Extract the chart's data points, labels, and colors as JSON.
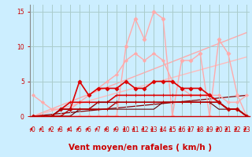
{
  "xlabel": "Vent moyen/en rafales ( km/h )",
  "bg_color": "#cceeff",
  "grid_color": "#aacccc",
  "x_ticks": [
    0,
    1,
    2,
    3,
    4,
    5,
    6,
    7,
    8,
    9,
    10,
    11,
    12,
    13,
    14,
    15,
    16,
    17,
    18,
    19,
    20,
    21,
    22,
    23
  ],
  "y_ticks": [
    0,
    5,
    10,
    15
  ],
  "ylim": [
    0,
    16
  ],
  "xlim": [
    0,
    23
  ],
  "lines": [
    {
      "x": [
        0,
        1,
        2,
        3,
        4,
        5,
        6,
        7,
        8,
        9,
        10,
        11,
        12,
        13,
        14,
        15,
        16,
        17,
        18,
        19,
        20,
        21,
        22,
        23
      ],
      "y": [
        0,
        0,
        0,
        0,
        0,
        0,
        0,
        0,
        0,
        0,
        10,
        14,
        11,
        15,
        14,
        0,
        8,
        8,
        9,
        0,
        11,
        9,
        3,
        0
      ],
      "color": "#ffaaaa",
      "lw": 1.0,
      "marker": "D",
      "ms": 2.5,
      "zorder": 2
    },
    {
      "x": [
        0,
        23
      ],
      "y": [
        0,
        12
      ],
      "color": "#ffaaaa",
      "lw": 1.0,
      "marker": null,
      "ms": 0,
      "zorder": 1
    },
    {
      "x": [
        0,
        23
      ],
      "y": [
        0,
        8.5
      ],
      "color": "#ffbbbb",
      "lw": 1.0,
      "marker": null,
      "ms": 0,
      "zorder": 1
    },
    {
      "x": [
        0,
        1,
        2,
        3,
        4,
        5,
        6,
        7,
        8,
        9,
        10,
        11,
        12,
        13,
        14,
        15,
        16,
        17,
        18,
        19,
        20,
        21,
        22,
        23
      ],
      "y": [
        3,
        2,
        1,
        1,
        1,
        2,
        3,
        4,
        5,
        6,
        8,
        9,
        8,
        9,
        8,
        5,
        4,
        3,
        3,
        3,
        3,
        2,
        2,
        3
      ],
      "color": "#ffaaaa",
      "lw": 1.0,
      "marker": "D",
      "ms": 2.0,
      "zorder": 2
    },
    {
      "x": [
        0,
        1,
        2,
        3,
        4,
        5,
        6,
        7,
        8,
        9,
        10,
        11,
        12,
        13,
        14,
        15,
        16,
        17,
        18,
        19,
        20,
        21,
        22,
        23
      ],
      "y": [
        0,
        0,
        0,
        1,
        1,
        5,
        3,
        4,
        4,
        4,
        5,
        4,
        4,
        5,
        5,
        5,
        4,
        4,
        4,
        3,
        2,
        1,
        1,
        0
      ],
      "color": "#dd0000",
      "lw": 1.2,
      "marker": "D",
      "ms": 2.5,
      "zorder": 3
    },
    {
      "x": [
        0,
        1,
        2,
        3,
        4,
        5,
        6,
        7,
        8,
        9,
        10,
        11,
        12,
        13,
        14,
        15,
        16,
        17,
        18,
        19,
        20,
        21,
        22,
        23
      ],
      "y": [
        0,
        0,
        0,
        1,
        2,
        2,
        2,
        2,
        2,
        3,
        3,
        3,
        3,
        3,
        3,
        3,
        3,
        3,
        3,
        3,
        2,
        1,
        1,
        0
      ],
      "color": "#dd0000",
      "lw": 1.2,
      "marker": "+",
      "ms": 3.5,
      "zorder": 3
    },
    {
      "x": [
        0,
        1,
        2,
        3,
        4,
        5,
        6,
        7,
        8,
        9,
        10,
        11,
        12,
        13,
        14,
        15,
        16,
        17,
        18,
        19,
        20,
        21,
        22,
        23
      ],
      "y": [
        0,
        0,
        0,
        1,
        1,
        1,
        1,
        2,
        2,
        2,
        2,
        2,
        2,
        2,
        2,
        2,
        2,
        2,
        2,
        2,
        2,
        1,
        1,
        0
      ],
      "color": "#990000",
      "lw": 1.0,
      "marker": "+",
      "ms": 3,
      "zorder": 3
    },
    {
      "x": [
        0,
        1,
        2,
        3,
        4,
        5,
        6,
        7,
        8,
        9,
        10,
        11,
        12,
        13,
        14,
        15,
        16,
        17,
        18,
        19,
        20,
        21,
        22,
        23
      ],
      "y": [
        0,
        0,
        0,
        0,
        1,
        1,
        1,
        1,
        1,
        2,
        2,
        2,
        2,
        2,
        2,
        2,
        2,
        2,
        2,
        2,
        2,
        1,
        1,
        0
      ],
      "color": "#bb0000",
      "lw": 1.0,
      "marker": "+",
      "ms": 2.5,
      "zorder": 3
    },
    {
      "x": [
        0,
        1,
        2,
        3,
        4,
        5,
        6,
        7,
        8,
        9,
        10,
        11,
        12,
        13,
        14,
        15,
        16,
        17,
        18,
        19,
        20,
        21,
        22,
        23
      ],
      "y": [
        0,
        0,
        0,
        0,
        0,
        1,
        1,
        1,
        1,
        1,
        1,
        1,
        1,
        1,
        2,
        2,
        2,
        2,
        2,
        2,
        1,
        1,
        1,
        0
      ],
      "color": "#660000",
      "lw": 0.8,
      "marker": null,
      "ms": 0,
      "zorder": 2
    },
    {
      "x": [
        0,
        23
      ],
      "y": [
        0,
        3
      ],
      "color": "#880000",
      "lw": 0.9,
      "marker": null,
      "ms": 0,
      "zorder": 1
    }
  ],
  "tick_fontsize": 5.5,
  "label_fontsize": 7.5,
  "label_color": "#cc0000",
  "tick_color": "#cc0000",
  "axis_color": "#cc0000",
  "arrow_color": "#cc0000"
}
